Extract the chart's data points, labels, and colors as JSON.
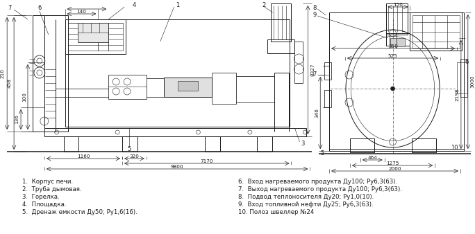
{
  "background_color": "#ffffff",
  "line_color": "#1a1a1a",
  "text_color": "#1a1a1a",
  "legend_items_left": [
    "1.  Корпус печи.",
    "2.  Труба дымовая.",
    "3.  Горелка.",
    "4.  Площадка.",
    "5.  Дренаж емкости Ду50; Ру1,6(16)."
  ],
  "legend_items_right": [
    "6.  Вход нагреваемого продукта Ду100; Ру6,3(63).",
    "7.  Выход нагреваемого продукта Ду100; Ру6,3(63).",
    "8.  Подвод теплоносителя Ду20; Ру1,0(10).",
    "9.  Вход топливной нефти Ду25; Ру6,3(63).",
    "10. Полоз швеллер №24"
  ],
  "font_size_legend": 6.2,
  "font_size_dim": 5.2,
  "font_size_label": 6.0
}
